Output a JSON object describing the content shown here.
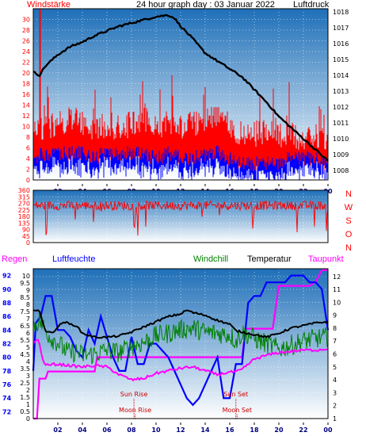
{
  "colors": {
    "panel_top": "#1e6fb8",
    "panel_bottom": "#ffffff",
    "wind": "#ff0000",
    "gust": "#0000ff",
    "pressure": "#000000",
    "direction": "#ff0000",
    "rain": "#ff00ff",
    "humidity": "#0000ff",
    "windchill": "#008000",
    "temperature": "#000000",
    "dewpoint": "#ff00ff",
    "astro": "#cc0000"
  },
  "chart_data": [
    {
      "type": "line",
      "title": "24 hour graph day : 03 Januar 2022",
      "left_label": "Windstärke",
      "right_label": "Luftdruck",
      "x_ticks": [
        "02",
        "04",
        "06",
        "08",
        "10",
        "12",
        "14",
        "16",
        "18",
        "20",
        "22",
        "00"
      ],
      "x_range": [
        0,
        24
      ],
      "y_left_ticks": [
        0,
        2,
        4,
        6,
        8,
        10,
        12,
        14,
        16,
        18,
        20,
        22,
        24,
        26,
        28,
        30
      ],
      "y_left_range": [
        0,
        32
      ],
      "y_right_ticks": [
        1008,
        1009,
        1010,
        1011,
        1012,
        1013,
        1014,
        1015,
        1016,
        1017,
        1018
      ],
      "y_right_range": [
        1007.4,
        1018.2
      ],
      "pressure": {
        "x": [
          0,
          0.5,
          1,
          2,
          3,
          4,
          5,
          6,
          7,
          8,
          9,
          10,
          11,
          11.5,
          12,
          13,
          14,
          15,
          16,
          17,
          18,
          19,
          20,
          21,
          22,
          23,
          24
        ],
        "y": [
          1014.2,
          1014.0,
          1014.6,
          1015.3,
          1015.8,
          1016.1,
          1016.5,
          1016.8,
          1017.1,
          1017.3,
          1017.5,
          1017.7,
          1017.8,
          1017.6,
          1017.1,
          1016.3,
          1015.4,
          1014.9,
          1014.4,
          1013.9,
          1013.1,
          1012.3,
          1011.4,
          1010.7,
          1010.0,
          1009.3,
          1008.6
        ]
      },
      "wind_hourly": [
        [
          0,
          8
        ],
        [
          1,
          9
        ],
        [
          2,
          10
        ],
        [
          3,
          11
        ],
        [
          4,
          10
        ],
        [
          5,
          9
        ],
        [
          6,
          10
        ],
        [
          7,
          9
        ],
        [
          8,
          10
        ],
        [
          9,
          11
        ],
        [
          10,
          9
        ],
        [
          11,
          10
        ],
        [
          12,
          9
        ],
        [
          13,
          10
        ],
        [
          14,
          11
        ],
        [
          15,
          12
        ],
        [
          16,
          10
        ],
        [
          17,
          8
        ],
        [
          18,
          8
        ],
        [
          19,
          9
        ],
        [
          20,
          8
        ],
        [
          21,
          8
        ],
        [
          22,
          7
        ],
        [
          23,
          8
        ],
        [
          24,
          7
        ]
      ],
      "gust_hourly": [
        [
          0,
          4
        ],
        [
          1,
          5
        ],
        [
          2,
          5
        ],
        [
          3,
          5
        ],
        [
          4,
          5
        ],
        [
          5,
          4
        ],
        [
          6,
          5
        ],
        [
          7,
          5
        ],
        [
          8,
          5
        ],
        [
          9,
          5
        ],
        [
          10,
          4
        ],
        [
          11,
          5
        ],
        [
          12,
          4
        ],
        [
          13,
          4
        ],
        [
          14,
          5
        ],
        [
          15,
          5
        ],
        [
          16,
          4
        ],
        [
          17,
          3
        ],
        [
          18,
          3
        ],
        [
          19,
          3
        ],
        [
          20,
          3
        ],
        [
          21,
          4
        ],
        [
          22,
          4
        ],
        [
          23,
          4
        ],
        [
          24,
          3
        ]
      ],
      "wind_peak": {
        "x": 0.55,
        "y": 32
      }
    },
    {
      "type": "line",
      "title": "",
      "right_labels": [
        "N",
        "W",
        "S",
        "O",
        "N"
      ],
      "x_range": [
        0,
        24
      ],
      "y_ticks": [
        0,
        45,
        90,
        135,
        180,
        225,
        270,
        315,
        360
      ],
      "y_range": [
        0,
        360
      ],
      "direction_mean": 255,
      "direction_spread": 45
    },
    {
      "type": "line",
      "title": "",
      "legend": [
        "Regen",
        "Luftfeuchte",
        "Windchill",
        "Temperatur",
        "Taupunkt"
      ],
      "x_ticks": [
        "02",
        "04",
        "06",
        "08",
        "10",
        "12",
        "14",
        "16",
        "18",
        "20",
        "22",
        "00"
      ],
      "x_range": [
        0,
        24
      ],
      "y_humidity_ticks": [
        72,
        74,
        76,
        78,
        80,
        82,
        84,
        86,
        88,
        90,
        92
      ],
      "y_humidity_range": [
        71,
        93
      ],
      "y_rain_ticks": [
        0,
        0.5,
        1,
        1.5,
        2,
        2.5,
        3,
        3.5,
        4,
        4.5,
        5,
        5.5,
        6,
        6.5,
        7,
        7.5,
        8,
        8.5,
        9,
        9.5,
        10
      ],
      "y_rain_range": [
        0,
        10.5
      ],
      "y_temp_ticks": [
        1,
        2,
        3,
        4,
        5,
        6,
        7,
        8,
        9,
        10,
        11,
        12
      ],
      "y_temp_range": [
        1,
        12.6
      ],
      "humidity": {
        "x": [
          0,
          0.2,
          0.6,
          1,
          1.5,
          2,
          2.5,
          3,
          3.5,
          4,
          4.5,
          5,
          5.5,
          6,
          6.5,
          7,
          7.5,
          8,
          8.5,
          9,
          9.5,
          10,
          10.5,
          11,
          11.5,
          12,
          12.5,
          13,
          13.5,
          14,
          14.5,
          15,
          15.5,
          16,
          16.5,
          17,
          17.5,
          18,
          18.5,
          19,
          19.5,
          20,
          20.5,
          21,
          21.5,
          22,
          22.5,
          23,
          23.5,
          24
        ],
        "y": [
          78,
          85,
          86,
          89,
          89,
          84,
          84,
          83,
          81,
          80,
          84,
          82,
          86,
          83,
          80,
          78,
          78,
          83,
          79,
          79,
          82,
          82,
          81,
          80,
          78,
          76,
          74,
          73,
          74,
          76,
          78,
          80,
          74,
          74,
          79,
          79,
          88,
          89,
          89,
          91,
          91,
          91,
          91,
          92,
          92,
          92,
          91,
          91,
          90,
          84
        ]
      },
      "windchill": {
        "x": [
          0,
          0.5,
          1,
          1.5,
          2,
          2.5,
          3,
          3.5,
          4,
          5,
          6,
          7,
          8,
          9,
          10,
          11,
          12,
          13,
          14,
          15,
          16,
          16.5,
          17,
          17.5,
          18,
          18.5,
          19,
          20,
          21,
          22,
          23,
          24
        ],
        "y": [
          8.2,
          8.6,
          7.8,
          7.2,
          6.9,
          6.4,
          6.0,
          6.2,
          5.9,
          6.0,
          6.3,
          6.1,
          6.6,
          6.9,
          7.4,
          7.6,
          7.9,
          8.0,
          7.7,
          7.6,
          7.5,
          7.0,
          7.6,
          7.5,
          7.2,
          7.0,
          6.8,
          6.4,
          6.7,
          7.0,
          7.2,
          7.3
        ]
      },
      "temperature": {
        "x": [
          0,
          0.5,
          1,
          1.5,
          2,
          2.5,
          3,
          3.5,
          4,
          5,
          6,
          7,
          8,
          9,
          10,
          11,
          12,
          12.5,
          13,
          14,
          15,
          16,
          16.5,
          17,
          17.5,
          18,
          19,
          20,
          21,
          22,
          23,
          24
        ],
        "y": [
          9.4,
          9.3,
          7.8,
          7.6,
          8.1,
          8.5,
          8.3,
          8.2,
          7.6,
          7.3,
          7.3,
          7.4,
          7.7,
          8.1,
          8.5,
          8.9,
          9.1,
          9.4,
          9.2,
          9.0,
          8.6,
          8.3,
          7.8,
          7.7,
          7.6,
          7.5,
          7.3,
          7.6,
          8.0,
          8.2,
          8.4,
          8.5
        ]
      },
      "dewpoint": {
        "x": [
          0,
          0.4,
          0.8,
          1.2,
          1.6,
          2,
          3,
          4,
          5,
          6,
          7,
          8,
          9,
          10,
          11,
          12,
          13,
          14,
          15,
          15.5,
          16,
          16.5,
          17,
          17.5,
          18,
          19,
          20,
          21,
          22,
          23,
          24
        ],
        "y": [
          6.8,
          7.2,
          5.4,
          5.1,
          5.2,
          5.2,
          5.1,
          5.0,
          5.1,
          5.0,
          4.4,
          4.0,
          4.1,
          4.5,
          4.7,
          4.9,
          5.0,
          4.7,
          4.4,
          4.5,
          4.6,
          4.6,
          4.8,
          5.2,
          5.6,
          5.9,
          6.1,
          6.2,
          6.3,
          6.3,
          6.4
        ]
      },
      "rain_cumulative": {
        "x": [
          0,
          0.3,
          0.5,
          1.0,
          1.2,
          5.0,
          5.2,
          17.0,
          17.3,
          19.5,
          20.0,
          22.5,
          23.0,
          23.5,
          24
        ],
        "y": [
          0,
          0,
          2.8,
          2.8,
          3.3,
          3.3,
          4.3,
          4.3,
          6.3,
          6.3,
          9.3,
          9.3,
          9.6,
          10.4,
          10.4
        ]
      },
      "astro": [
        {
          "label": "Sun Rise",
          "x": 8.2,
          "row": 1
        },
        {
          "label": "Moon Rise",
          "x": 8.3,
          "row": 2
        },
        {
          "label": "Sun Set",
          "x": 16.5,
          "row": 1
        },
        {
          "label": "Moon Set",
          "x": 16.6,
          "row": 2
        }
      ]
    }
  ]
}
